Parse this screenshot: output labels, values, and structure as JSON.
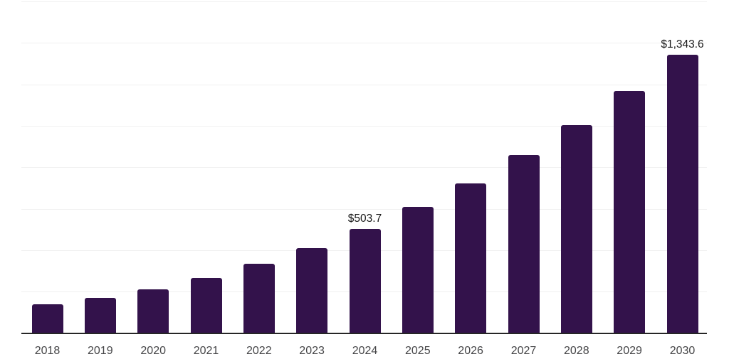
{
  "chart_data": {
    "type": "bar",
    "title": "",
    "xlabel": "",
    "ylabel": "",
    "categories": [
      "2018",
      "2019",
      "2020",
      "2021",
      "2022",
      "2023",
      "2024",
      "2025",
      "2026",
      "2027",
      "2028",
      "2029",
      "2030"
    ],
    "values": [
      141,
      172,
      213,
      269,
      338,
      413,
      503.7,
      609,
      724,
      861,
      1006,
      1170,
      1343.6
    ],
    "labeled_values_note": "only 2024 and 2030 carry visible data labels; other values estimated from gridlines",
    "annotations": [
      {
        "category": "2024",
        "label": "$503.7"
      },
      {
        "category": "2030",
        "label": "$1,343.6"
      }
    ],
    "ylim": [
      0,
      1600
    ],
    "gridline_interval": 200,
    "grid": "horizontal",
    "y_tick_labels_visible": false,
    "legend": "none",
    "colors": {
      "bar": "#33124B",
      "gridline": "#F0F0F0",
      "axis_line": "#262626",
      "x_label_text": "#454547",
      "data_label_text": "#1A1A1A",
      "background": "#FFFFFF"
    }
  }
}
